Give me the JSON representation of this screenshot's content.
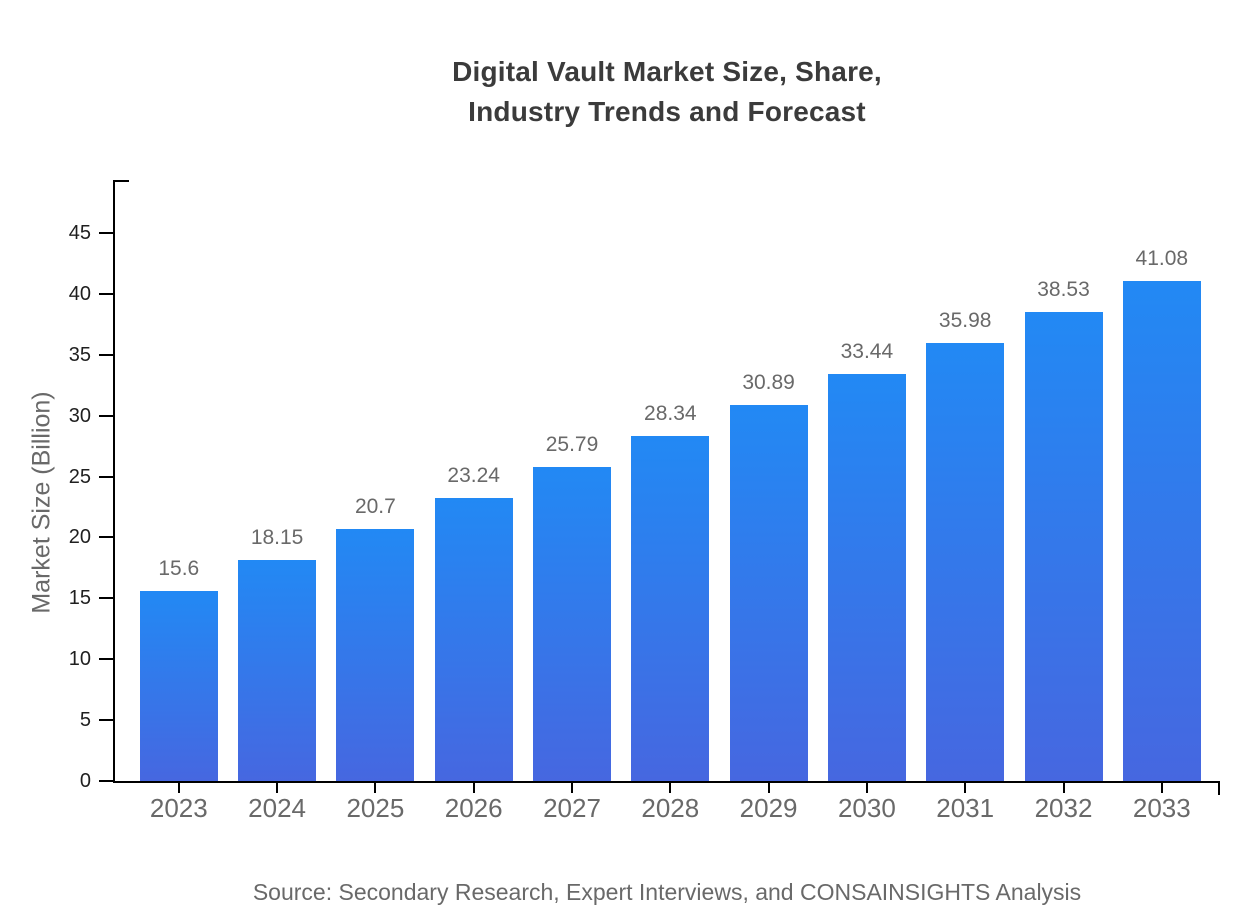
{
  "title": {
    "line1": "Digital Vault Market Size, Share,",
    "line2": "Industry Trends and Forecast"
  },
  "chart_data": {
    "type": "bar",
    "title": "Digital Vault Market Size, Share, Industry Trends and Forecast",
    "categories": [
      "2023",
      "2024",
      "2025",
      "2026",
      "2027",
      "2028",
      "2029",
      "2030",
      "2031",
      "2032",
      "2033"
    ],
    "values": [
      15.6,
      18.15,
      20.7,
      23.24,
      25.79,
      28.34,
      30.89,
      33.44,
      35.98,
      38.53,
      41.08
    ],
    "value_labels": [
      "15.6",
      "18.15",
      "20.7",
      "23.24",
      "25.79",
      "28.34",
      "30.89",
      "33.44",
      "35.98",
      "38.53",
      "41.08"
    ],
    "xlabel": "",
    "ylabel": "Market Size (Billion)",
    "ylim": [
      0,
      49
    ],
    "yticks": [
      0,
      5,
      10,
      15,
      20,
      25,
      30,
      35,
      40,
      45
    ],
    "grid": false,
    "legend": null
  },
  "colors": {
    "bar_gradient_top": "#2289F4",
    "bar_gradient_bottom": "#4667E0",
    "axis": "#000000",
    "y_tick_label": "#1f1f1f",
    "muted_label": "#696969",
    "title": "#3b3b3b"
  },
  "source_note": "Source: Secondary Research, Expert Interviews, and CONSAINSIGHTS Analysis"
}
